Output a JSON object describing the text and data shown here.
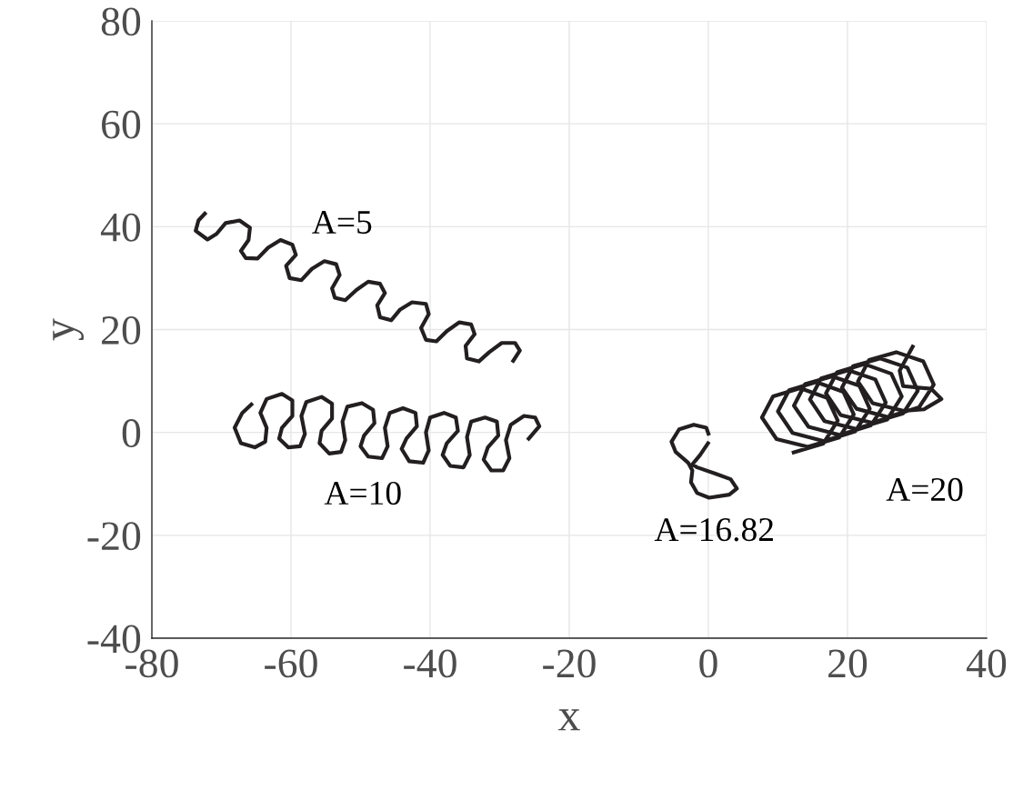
{
  "chart_data": {
    "type": "line",
    "xlabel": "x",
    "ylabel": "y",
    "xlim": [
      -80,
      40
    ],
    "ylim": [
      -40,
      80
    ],
    "xticks": [
      -80,
      -60,
      -40,
      -20,
      0,
      20,
      40
    ],
    "yticks": [
      -40,
      -20,
      0,
      20,
      40,
      60,
      80
    ],
    "grid": true,
    "marker": "none",
    "line_style": "solid",
    "series": [
      {
        "color": "#231f20",
        "x": [
          -72.2,
          -73.3,
          -73.7,
          -72.0,
          -70.7,
          -69.4,
          -67.4,
          -65.9,
          -66.1,
          -67.2,
          -66.5,
          -64.8,
          -63.3,
          -61.5,
          -59.8,
          -59.3,
          -60.7,
          -60.2,
          -58.5,
          -57.0,
          -55.2,
          -53.5,
          -53.0,
          -54.1,
          -53.7,
          -52.2,
          -50.6,
          -48.9,
          -47.2,
          -46.5,
          -47.6,
          -47.2,
          -45.6,
          -44.3,
          -42.6,
          -40.6,
          -40.2,
          -41.3,
          -40.6,
          -39.1,
          -37.6,
          -35.8,
          -34.1,
          -33.6,
          -34.9,
          -34.7,
          -33.0,
          -31.5,
          -29.7,
          -27.8,
          -27.1,
          -28.2
        ],
        "values": [
          42.8,
          41.2,
          39.2,
          37.5,
          38.6,
          40.7,
          41.2,
          39.8,
          37.4,
          35.3,
          33.9,
          33.8,
          35.9,
          37.4,
          36.5,
          34.5,
          32.4,
          30.0,
          29.6,
          31.8,
          33.3,
          32.7,
          30.6,
          28.0,
          26.2,
          25.7,
          27.7,
          29.3,
          28.9,
          27.1,
          24.7,
          22.4,
          21.8,
          23.9,
          25.3,
          25.0,
          23.0,
          20.3,
          18.0,
          17.7,
          19.7,
          21.4,
          21.0,
          19.1,
          16.8,
          14.4,
          13.8,
          15.6,
          17.4,
          17.4,
          15.9,
          13.6
        ]
      },
      {
        "color": "#231f20",
        "x": [
          -65.5,
          -67.0,
          -68.1,
          -67.2,
          -65.2,
          -63.7,
          -63.5,
          -64.4,
          -63.5,
          -61.3,
          -59.8,
          -59.8,
          -61.3,
          -61.7,
          -60.4,
          -58.7,
          -58.0,
          -58.5,
          -57.8,
          -55.6,
          -54.1,
          -54.1,
          -55.6,
          -55.9,
          -54.5,
          -52.8,
          -52.2,
          -52.6,
          -51.9,
          -49.8,
          -48.2,
          -48.0,
          -49.5,
          -50.0,
          -48.9,
          -46.9,
          -46.1,
          -46.5,
          -45.8,
          -43.9,
          -42.1,
          -41.9,
          -43.4,
          -44.1,
          -43.0,
          -41.0,
          -40.2,
          -40.6,
          -40.0,
          -38.0,
          -36.3,
          -36.0,
          -37.6,
          -38.2,
          -37.1,
          -35.2,
          -34.3,
          -34.7,
          -34.1,
          -32.1,
          -30.4,
          -30.2,
          -31.7,
          -32.3,
          -31.2,
          -29.5,
          -28.6,
          -29.1,
          -28.4,
          -26.5,
          -24.9,
          -24.3,
          -26.0
        ],
        "values": [
          5.7,
          3.8,
          0.9,
          -2.1,
          -2.9,
          -1.8,
          0.9,
          3.8,
          6.5,
          7.5,
          6.2,
          3.2,
          0.9,
          -1.2,
          -2.9,
          -2.7,
          -0.3,
          3.2,
          5.9,
          6.9,
          5.6,
          2.7,
          0.3,
          -2.1,
          -4.1,
          -3.8,
          -1.5,
          2.1,
          5.0,
          5.7,
          4.4,
          1.8,
          -0.6,
          -2.7,
          -4.7,
          -5.0,
          -2.7,
          0.9,
          3.8,
          4.7,
          3.8,
          1.2,
          -1.2,
          -3.2,
          -5.6,
          -5.9,
          -3.5,
          0.0,
          2.9,
          3.8,
          2.9,
          0.3,
          -2.1,
          -4.4,
          -6.5,
          -6.8,
          -4.4,
          -0.9,
          2.1,
          2.9,
          2.1,
          -0.6,
          -2.9,
          -5.3,
          -7.4,
          -7.4,
          -5.0,
          -1.5,
          1.5,
          3.2,
          2.9,
          1.2,
          -1.5
        ]
      },
      {
        "color": "#231f20",
        "x": [
          0.1,
          -0.3,
          -2.1,
          -4.2,
          -5.3,
          -4.7,
          -2.9,
          -2.3,
          -2.5,
          -1.6,
          0.1,
          3.0,
          4.1,
          3.2,
          1.0,
          -1.6,
          -2.3,
          -1.2,
          0.1
        ],
        "values": [
          -0.6,
          0.9,
          1.5,
          0.6,
          -1.8,
          -3.8,
          -5.9,
          -7.4,
          -9.7,
          -11.8,
          -12.7,
          -12.1,
          -10.9,
          -9.1,
          -8.0,
          -6.8,
          -6.2,
          -4.4,
          -1.8
        ]
      },
      {
        "color": "#231f20",
        "x": [
          12,
          16.5,
          18.6,
          17.1,
          13.2,
          9.3,
          7.7,
          9.8,
          14.3,
          18.8,
          20.9,
          19.4,
          15.5,
          11.6,
          10.0,
          12.1,
          16.6,
          21.1,
          23.2,
          21.7,
          17.8,
          13.9,
          12.3,
          14.4,
          18.9,
          23.4,
          25.5,
          24.0,
          20.1,
          16.2,
          14.6,
          16.7,
          21.2,
          25.7,
          27.8,
          26.3,
          22.4,
          18.5,
          16.9,
          19.0,
          23.5,
          28.0,
          30.1,
          28.6,
          24.7,
          20.8,
          19.2,
          21.3,
          25.8,
          30.3,
          32.4,
          30.9,
          27.0,
          23.1,
          21.5,
          23.6,
          28.1,
          31,
          33.5,
          32,
          28,
          27.5,
          29.5
        ],
        "values": [
          -4,
          -2.2,
          2.3,
          6.7,
          8.6,
          7.0,
          2.9,
          -1.3,
          -2.8,
          -1.0,
          3.5,
          7.9,
          9.8,
          8.2,
          4.1,
          -0.1,
          -1.7,
          0.2,
          4.6,
          9.1,
          10.9,
          9.4,
          5.2,
          1.1,
          -0.5,
          1.4,
          5.8,
          10.3,
          12.1,
          10.5,
          6.4,
          2.2,
          0.7,
          2.5,
          7.0,
          11.4,
          13.3,
          11.7,
          7.6,
          3.4,
          1.9,
          3.7,
          8.1,
          12.6,
          14.4,
          12.9,
          8.7,
          4.6,
          3.0,
          4.9,
          9.3,
          13.8,
          15.6,
          14.1,
          9.9,
          5.7,
          4.2,
          4.5,
          6.5,
          8.5,
          9,
          12,
          17
        ]
      }
    ],
    "annotations": [
      "A=5",
      "A=10",
      "A=16.82",
      "A=20"
    ]
  }
}
